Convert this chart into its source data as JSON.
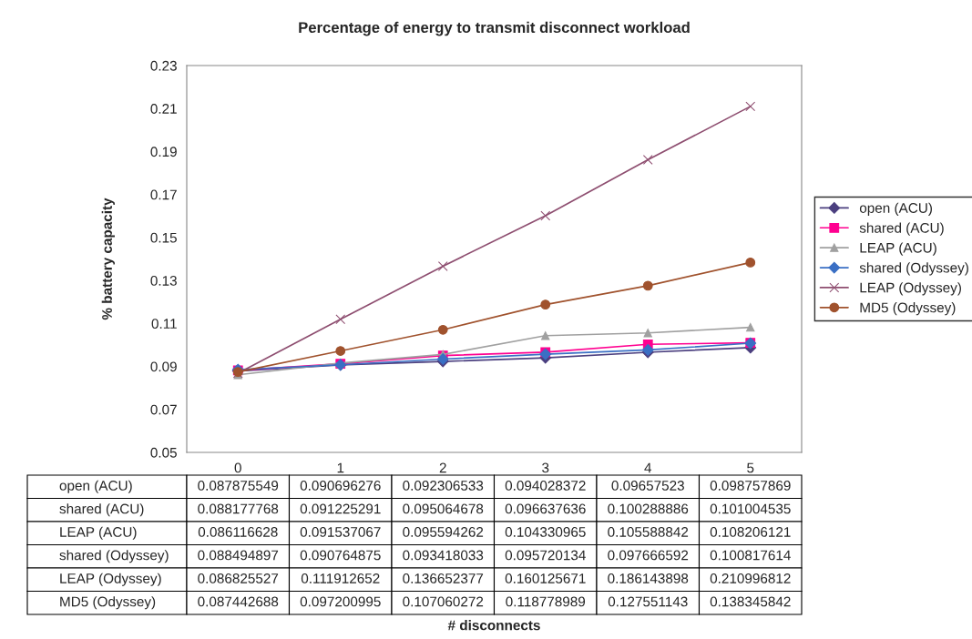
{
  "chart_data": {
    "type": "line",
    "title": "Percentage of energy to transmit disconnect workload",
    "annotations": [
      "# disconnects"
    ],
    "ylabel": "% battery capacity",
    "categories": [
      "0",
      "1",
      "2",
      "3",
      "4",
      "5"
    ],
    "ylim": [
      0.05,
      0.23
    ],
    "yticks": [
      0.05,
      0.07,
      0.09,
      0.11,
      0.13,
      0.15,
      0.17,
      0.19,
      0.21,
      0.23
    ],
    "grid": false,
    "legend": "right",
    "data_labels": true,
    "series": [
      {
        "name": "open (ACU)",
        "color": "#4b3f7f",
        "marker": "diamond",
        "values": [
          0.087875549,
          0.090696276,
          0.092306533,
          0.094028372,
          0.09657523,
          0.098757869
        ]
      },
      {
        "name": "shared (ACU)",
        "color": "#ff0090",
        "marker": "square",
        "values": [
          0.088177768,
          0.091225291,
          0.095064678,
          0.096637636,
          0.100288886,
          0.101004535
        ]
      },
      {
        "name": "LEAP (ACU)",
        "color": "#a0a0a0",
        "marker": "triangle",
        "values": [
          0.086116628,
          0.091537067,
          0.095594262,
          0.104330965,
          0.105588842,
          0.108206121
        ]
      },
      {
        "name": "shared (Odyssey)",
        "color": "#3a6fc4",
        "marker": "diamond",
        "values": [
          0.088494897,
          0.090764875,
          0.093418033,
          0.095720134,
          0.097666592,
          0.100817614
        ]
      },
      {
        "name": "LEAP (Odyssey)",
        "color": "#8e4e70",
        "marker": "cross",
        "values": [
          0.086825527,
          0.111912652,
          0.136652377,
          0.160125671,
          0.186143898,
          0.210996812
        ]
      },
      {
        "name": "MD5 (Odyssey)",
        "color": "#a0522d",
        "marker": "circle",
        "values": [
          0.087442688,
          0.097200995,
          0.107060272,
          0.118778989,
          0.127551143,
          0.138345842
        ]
      }
    ]
  }
}
